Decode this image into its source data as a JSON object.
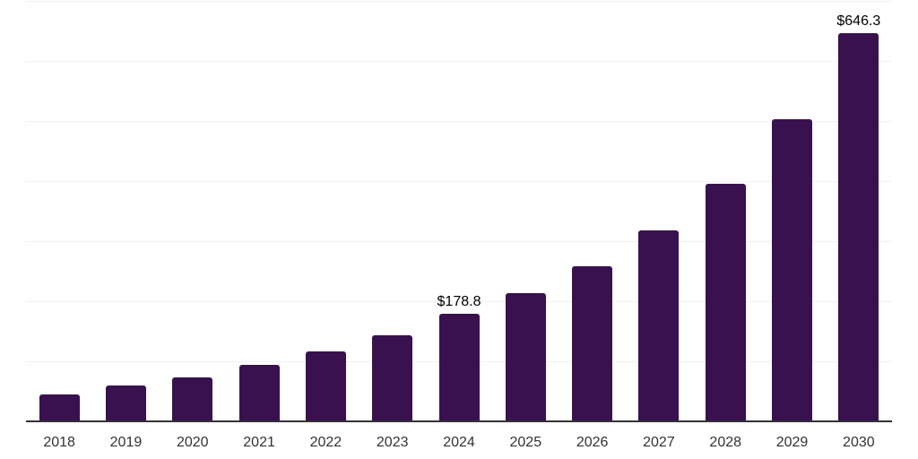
{
  "chart_data": {
    "type": "bar",
    "title": "",
    "xlabel": "",
    "ylabel": "",
    "categories": [
      "2018",
      "2019",
      "2020",
      "2021",
      "2022",
      "2023",
      "2024",
      "2025",
      "2026",
      "2027",
      "2028",
      "2029",
      "2030"
    ],
    "values": [
      44.1,
      60.3,
      73.7,
      94.6,
      116.6,
      143.2,
      178.8,
      213.8,
      258.6,
      318.4,
      395.7,
      502.7,
      646.3
    ],
    "labeled_points": [
      {
        "category": "2024",
        "label": "$178.8"
      },
      {
        "category": "2030",
        "label": "$646.3"
      }
    ],
    "value_prefix": "$",
    "ylim": [
      0,
      700
    ],
    "gridline_step": 100,
    "grid": true,
    "legend_position": "none",
    "colors": {
      "bar": "#38114E",
      "gridline": "#F1F1F1",
      "axis_line": "#333333",
      "tick_label": "#333333",
      "data_label": "#000000",
      "background": "#FFFFFF"
    }
  }
}
